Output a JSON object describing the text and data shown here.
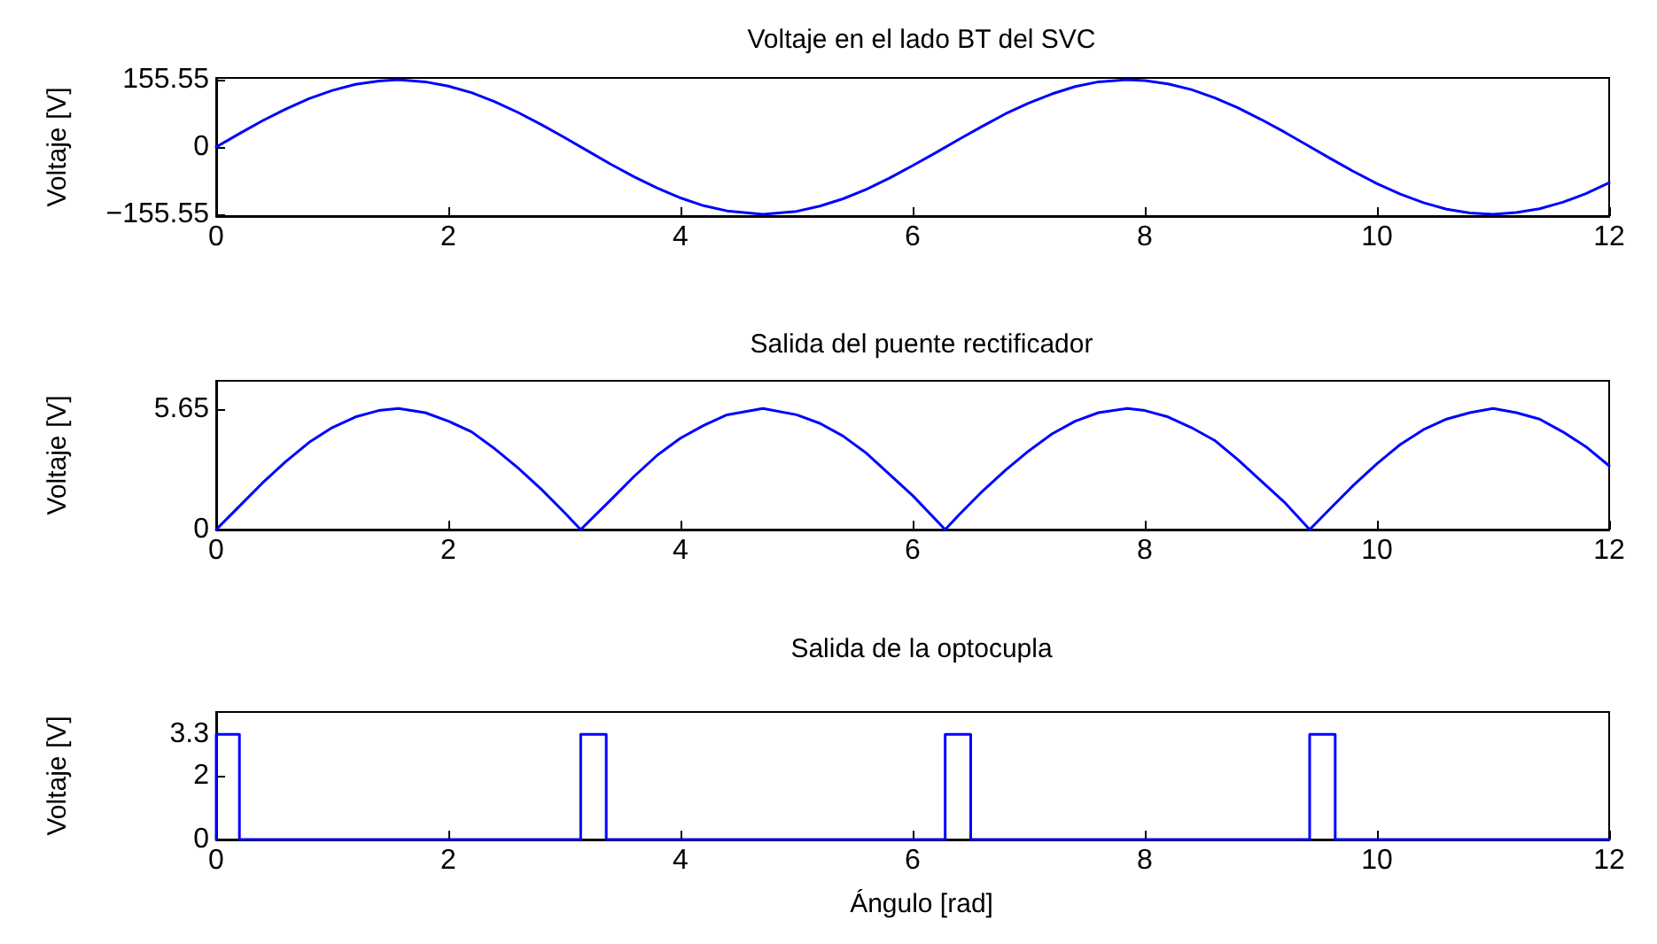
{
  "chart_data": [
    {
      "type": "line",
      "title": "Voltaje en el lado BT del SVC",
      "ylabel": "Voltaje [V]",
      "marker": "none",
      "line_style": "solid",
      "grid": false,
      "xlim": [
        0,
        12
      ],
      "xticks": [
        0,
        2,
        4,
        6,
        8,
        10,
        12
      ],
      "ylim": [
        -160,
        160
      ],
      "yticks": [
        -155.55,
        0,
        155.55
      ],
      "series": [
        {
          "color": "#0000ff",
          "x": [
            0,
            0.2,
            0.4,
            0.6,
            0.8,
            1.0,
            1.2,
            1.4,
            1.57,
            1.8,
            2.0,
            2.2,
            2.4,
            2.6,
            2.8,
            3.0,
            3.2,
            3.4,
            3.6,
            3.8,
            4.0,
            4.2,
            4.4,
            4.71,
            5.0,
            5.2,
            5.4,
            5.6,
            5.8,
            6.0,
            6.2,
            6.4,
            6.6,
            6.8,
            7.0,
            7.2,
            7.4,
            7.6,
            7.85,
            8.0,
            8.2,
            8.4,
            8.6,
            8.8,
            9.0,
            9.2,
            9.4,
            9.6,
            9.8,
            10.0,
            10.2,
            10.4,
            10.6,
            10.8,
            11.0,
            11.2,
            11.4,
            11.6,
            11.8,
            12.0
          ],
          "values": [
            0,
            31,
            61,
            88,
            112,
            131,
            145,
            153,
            156,
            151,
            141,
            126,
            105,
            80,
            52,
            22,
            -9,
            -40,
            -69,
            -95,
            -118,
            -136,
            -148,
            -156,
            -149,
            -137,
            -120,
            -98,
            -72,
            -43,
            -13,
            18,
            48,
            77,
            102,
            123,
            140,
            151,
            156,
            154,
            146,
            133,
            114,
            91,
            64,
            35,
            4,
            -27,
            -57,
            -85,
            -109,
            -129,
            -144,
            -153,
            -156,
            -152,
            -143,
            -128,
            -108,
            -83
          ]
        }
      ]
    },
    {
      "type": "line",
      "title": "Salida del puente rectificador",
      "ylabel": "Voltaje [V]",
      "marker": "none",
      "line_style": "solid",
      "grid": false,
      "xlim": [
        0,
        12
      ],
      "xticks": [
        0,
        2,
        4,
        6,
        8,
        10,
        12
      ],
      "ylim": [
        0,
        7
      ],
      "yticks": [
        0,
        5.65
      ],
      "series": [
        {
          "color": "#0000ff",
          "x": [
            0,
            0.2,
            0.4,
            0.6,
            0.8,
            1.0,
            1.2,
            1.4,
            1.57,
            1.8,
            2.0,
            2.2,
            2.4,
            2.6,
            2.8,
            3.0,
            3.14,
            3.4,
            3.6,
            3.8,
            4.0,
            4.2,
            4.4,
            4.71,
            5.0,
            5.2,
            5.4,
            5.6,
            5.8,
            6.0,
            6.28,
            6.4,
            6.6,
            6.8,
            7.0,
            7.2,
            7.4,
            7.6,
            7.85,
            8.0,
            8.2,
            8.4,
            8.6,
            8.8,
            9.0,
            9.2,
            9.42,
            9.6,
            9.8,
            10.0,
            10.2,
            10.4,
            10.6,
            10.8,
            11.0,
            11.2,
            11.4,
            11.6,
            11.8,
            12.0
          ],
          "values": [
            0,
            1.1,
            2.2,
            3.2,
            4.1,
            4.8,
            5.3,
            5.6,
            5.7,
            5.5,
            5.1,
            4.6,
            3.8,
            2.9,
            1.9,
            0.8,
            0,
            1.4,
            2.5,
            3.5,
            4.3,
            4.9,
            5.4,
            5.7,
            5.4,
            5.0,
            4.4,
            3.6,
            2.6,
            1.6,
            0,
            0.7,
            1.8,
            2.8,
            3.7,
            4.5,
            5.1,
            5.5,
            5.7,
            5.6,
            5.3,
            4.8,
            4.2,
            3.3,
            2.3,
            1.3,
            0,
            1.0,
            2.1,
            3.1,
            4.0,
            4.7,
            5.2,
            5.5,
            5.7,
            5.5,
            5.2,
            4.6,
            3.9,
            3.0
          ]
        }
      ]
    },
    {
      "type": "line",
      "title": "Salida de la optocupla",
      "ylabel": "Voltaje [V]",
      "xlabel": "Ángulo [rad]",
      "marker": "none",
      "line_style": "solid",
      "grid": false,
      "xlim": [
        0,
        12
      ],
      "xticks": [
        0,
        2,
        4,
        6,
        8,
        10,
        12
      ],
      "ylim": [
        0,
        4
      ],
      "yticks": [
        0,
        2,
        3.3
      ],
      "series": [
        {
          "color": "#0000ff",
          "x": [
            0,
            0,
            0.2,
            0.2,
            3.14,
            3.14,
            3.36,
            3.36,
            6.28,
            6.28,
            6.5,
            6.5,
            9.42,
            9.42,
            9.64,
            9.64,
            12
          ],
          "values": [
            0,
            3.3,
            3.3,
            0,
            0,
            3.3,
            3.3,
            0,
            0,
            3.3,
            3.3,
            0,
            0,
            3.3,
            3.3,
            0,
            0
          ]
        }
      ]
    }
  ]
}
